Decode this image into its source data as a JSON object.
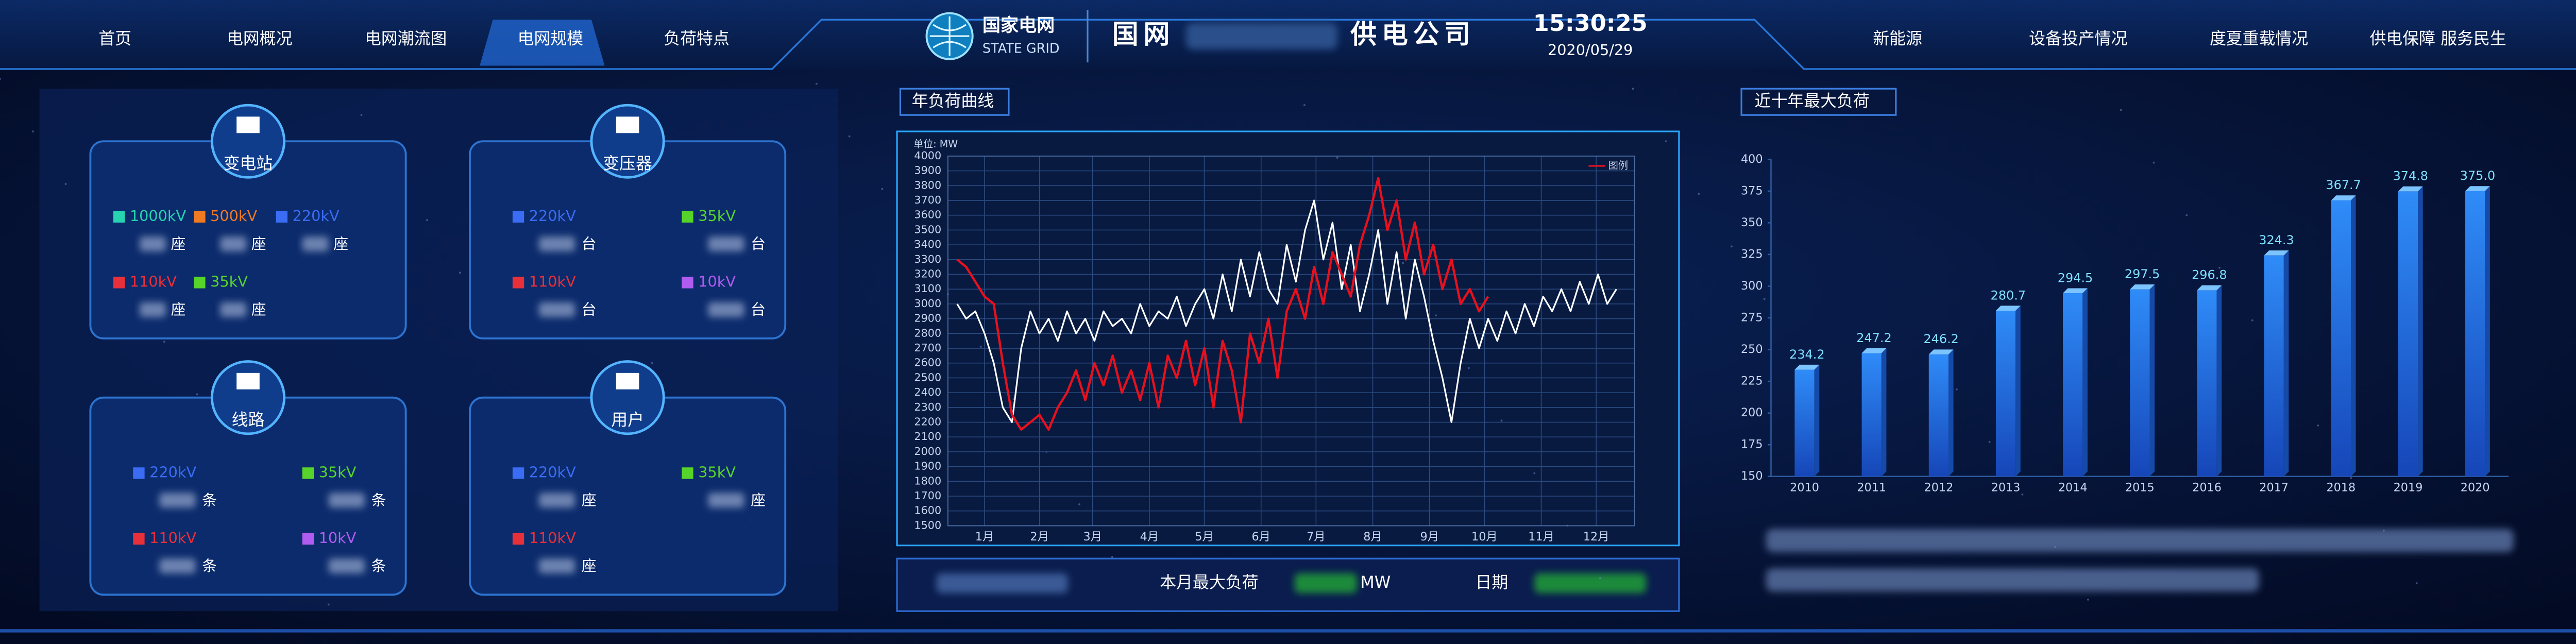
{
  "nav_left": [
    "首页",
    "电网概况",
    "电网潮流图",
    "电网规模",
    "负荷特点"
  ],
  "header": {
    "logo_cn": "国家电网",
    "logo_en": "STATE GRID",
    "title_prefix": "国网",
    "title_suffix": "供电公司",
    "time": "15:30:25",
    "date": "2020/05/29"
  },
  "nav_right": [
    "新能源",
    "设备投产情况",
    "度夏重载情况",
    "供电保障 服务民生"
  ],
  "cards": [
    {
      "title": "变电站",
      "unit": "座",
      "items": [
        {
          "label": "1000kV",
          "color": "#27d3b0"
        },
        {
          "label": "500kV",
          "color": "#f07a22"
        },
        {
          "label": "220kV",
          "color": "#3a6cf4"
        },
        {
          "label": "110kV",
          "color": "#e8303a"
        },
        {
          "label": "35kV",
          "color": "#56d42a"
        }
      ]
    },
    {
      "title": "变压器",
      "unit": "台",
      "items": [
        {
          "label": "220kV",
          "color": "#3a6cf4"
        },
        {
          "label": "35kV",
          "color": "#56d42a"
        },
        {
          "label": "110kV",
          "color": "#e8303a"
        },
        {
          "label": "10kV",
          "color": "#b05cf0"
        }
      ]
    },
    {
      "title": "线路",
      "unit": "条",
      "items": [
        {
          "label": "220kV",
          "color": "#3a6cf4"
        },
        {
          "label": "35kV",
          "color": "#56d42a"
        },
        {
          "label": "110kV",
          "color": "#e8303a"
        },
        {
          "label": "10kV",
          "color": "#b05cf0"
        }
      ]
    },
    {
      "title": "用户",
      "unit": "座",
      "items": [
        {
          "label": "220kV",
          "color": "#3a6cf4"
        },
        {
          "label": "35kV",
          "color": "#56d42a"
        },
        {
          "label": "110kV",
          "color": "#e8303a"
        }
      ]
    }
  ],
  "load_summary": {
    "label": "本月最大负荷",
    "unit": "MW",
    "date_label": "日期"
  },
  "chart_data": [
    {
      "type": "line",
      "title": "年负荷曲线",
      "y_label": "单位: MW",
      "x": [
        0,
        5,
        10,
        15,
        20,
        25,
        30,
        35,
        40,
        45,
        50,
        55,
        60,
        65,
        70,
        75,
        80,
        85,
        90,
        95,
        100,
        105,
        110,
        115,
        120,
        125,
        130,
        135,
        140,
        145,
        150,
        155,
        160,
        165,
        170,
        175,
        180,
        185,
        190,
        195,
        200,
        205,
        210,
        215,
        220,
        225,
        230,
        235,
        240,
        245,
        250,
        255,
        260,
        265,
        270,
        275,
        280,
        285,
        290,
        295,
        300,
        305,
        310,
        315,
        320,
        325,
        330,
        335,
        340,
        345,
        350,
        355,
        360
      ],
      "xlim": [
        -5,
        370
      ],
      "xticks": [
        {
          "value": 15,
          "label": "1月"
        },
        {
          "value": 45,
          "label": "2月"
        },
        {
          "value": 74,
          "label": "3月"
        },
        {
          "value": 105,
          "label": "4月"
        },
        {
          "value": 135,
          "label": "5月"
        },
        {
          "value": 166,
          "label": "6月"
        },
        {
          "value": 196,
          "label": "7月"
        },
        {
          "value": 227,
          "label": "8月"
        },
        {
          "value": 258,
          "label": "9月"
        },
        {
          "value": 288,
          "label": "10月"
        },
        {
          "value": 319,
          "label": "11月"
        },
        {
          "value": 349,
          "label": "12月"
        }
      ],
      "ylim": [
        1500,
        4000
      ],
      "yticks": [
        1500,
        1600,
        1700,
        1800,
        1900,
        2000,
        2100,
        2200,
        2300,
        2400,
        2500,
        2600,
        2700,
        2800,
        2900,
        3000,
        3100,
        3200,
        3300,
        3400,
        3500,
        3600,
        3700,
        3800,
        3900,
        4000
      ],
      "grid": true,
      "legend": "top-right",
      "series": [
        {
          "color": "#ffffff",
          "values": [
            3000,
            2900,
            2950,
            2800,
            2600,
            2300,
            2200,
            2700,
            2950,
            2800,
            2900,
            2750,
            2950,
            2800,
            2900,
            2750,
            2950,
            2850,
            2900,
            2800,
            3000,
            2850,
            2950,
            2900,
            3050,
            2850,
            3000,
            3100,
            2900,
            3200,
            2950,
            3300,
            3050,
            3350,
            3100,
            3000,
            3400,
            3150,
            3500,
            3700,
            3300,
            3550,
            3100,
            3400,
            2950,
            3200,
            3500,
            3000,
            3350,
            2900,
            3300,
            3050,
            2750,
            2500,
            2200,
            2600,
            2900,
            2700,
            2900,
            2750,
            2950,
            2800,
            3000,
            2850,
            3050,
            2950,
            3100,
            2950,
            3150,
            3000,
            3200,
            3000,
            3100
          ]
        },
        {
          "name": "图例",
          "color": "#e8101e",
          "values": [
            3300,
            3250,
            3150,
            3050,
            3000,
            2600,
            2250,
            2150,
            2200,
            2250,
            2150,
            2300,
            2400,
            2550,
            2350,
            2600,
            2450,
            2650,
            2400,
            2550,
            2350,
            2600,
            2300,
            2650,
            2500,
            2750,
            2450,
            2700,
            2300,
            2750,
            2550,
            2200,
            2800,
            2600,
            2900,
            2500,
            2950,
            3100,
            2900,
            3250,
            3000,
            3350,
            3200,
            3050,
            3400,
            3600,
            3850,
            3500,
            3700,
            3300,
            3550,
            3200,
            3400,
            3100,
            3300,
            3000,
            3100,
            2950,
            3050,
            null,
            null,
            null,
            null,
            null,
            null,
            null,
            null,
            null,
            null,
            null,
            null,
            null,
            null
          ]
        }
      ]
    },
    {
      "type": "bar",
      "title": "近十年最大负荷",
      "categories": [
        "2010",
        "2011",
        "2012",
        "2013",
        "2014",
        "2015",
        "2016",
        "2017",
        "2018",
        "2019",
        "2020"
      ],
      "values": [
        234.2,
        247.2,
        246.2,
        280.7,
        294.5,
        297.5,
        296.8,
        324.3,
        367.7,
        374.8,
        375.0
      ],
      "value_labels": [
        "234.2",
        "247.2",
        "246.2",
        "280.7",
        "294.5",
        "297.5",
        "296.8",
        "324.3",
        "367.7",
        "374.8",
        "375.0"
      ],
      "color": "#1f74e0",
      "ylim": [
        150,
        400
      ],
      "yticks": [
        150,
        175,
        200,
        225,
        250,
        275,
        300,
        325,
        350,
        375,
        400
      ],
      "grid": false
    }
  ]
}
